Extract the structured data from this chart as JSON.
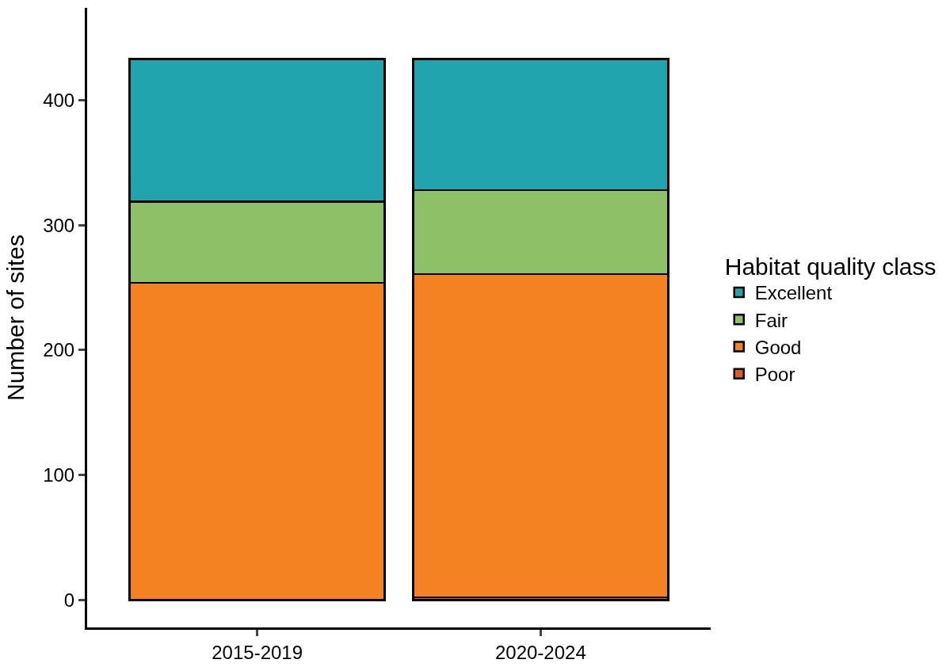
{
  "chart_data": {
    "type": "bar",
    "stacked": true,
    "ylabel": "Number of sites",
    "legend_title": "Habitat quality class",
    "categories": [
      "2015-2019",
      "2020-2024"
    ],
    "series": [
      {
        "name": "Poor",
        "color": "#e55627",
        "values": [
          0,
          2
        ]
      },
      {
        "name": "Good",
        "color": "#f48221",
        "values": [
          254,
          259
        ]
      },
      {
        "name": "Fair",
        "color": "#8ec068",
        "values": [
          65,
          67
        ]
      },
      {
        "name": "Excellent",
        "color": "#21a4ae",
        "values": [
          114,
          105
        ]
      }
    ],
    "ylim": [
      -22,
      474
    ],
    "yticks": [
      0,
      100,
      200,
      300,
      400
    ],
    "grid": false,
    "legend": "right"
  }
}
